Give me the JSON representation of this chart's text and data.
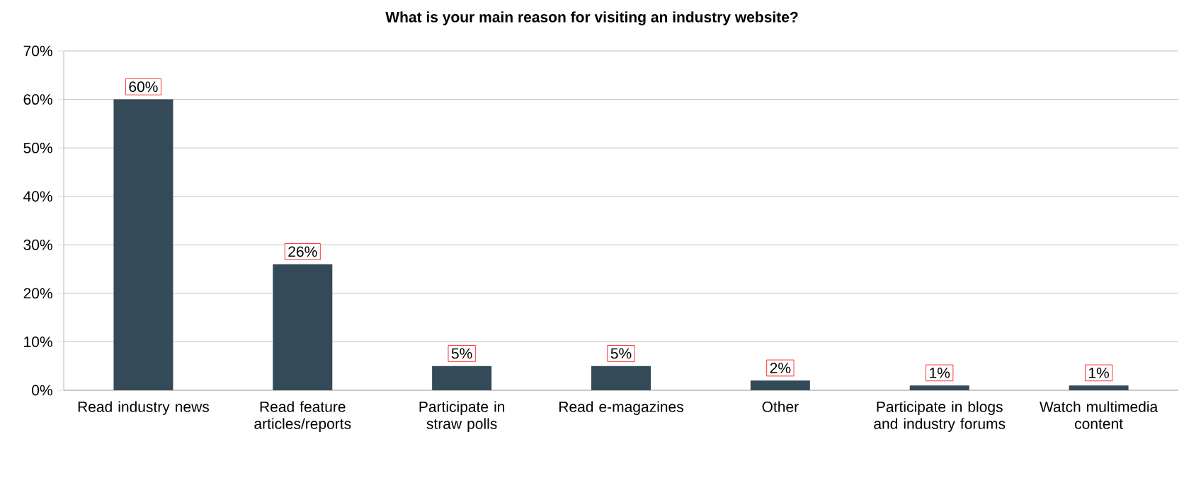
{
  "chart_data": {
    "type": "bar",
    "title": "What is your main reason for visiting an industry website?",
    "categories": [
      "Read industry news",
      "Read feature articles/reports",
      "Participate in straw polls",
      "Read e-magazines",
      "Other",
      "Participate in blogs and industry forums",
      "Watch multimedia content"
    ],
    "values": [
      60,
      26,
      5,
      5,
      2,
      1,
      1
    ],
    "value_labels": [
      "60%",
      "26%",
      "5%",
      "5%",
      "2%",
      "1%",
      "1%"
    ],
    "color": "#344a58",
    "ylim": [
      0,
      70
    ],
    "yticks": [
      {
        "value": 0,
        "label": "0%"
      },
      {
        "value": 10,
        "label": "10%"
      },
      {
        "value": 20,
        "label": "20%"
      },
      {
        "value": 30,
        "label": "30%"
      },
      {
        "value": 40,
        "label": "40%"
      },
      {
        "value": 50,
        "label": "50%"
      },
      {
        "value": 60,
        "label": "60%"
      },
      {
        "value": 70,
        "label": "70%"
      }
    ],
    "grid": "y"
  }
}
